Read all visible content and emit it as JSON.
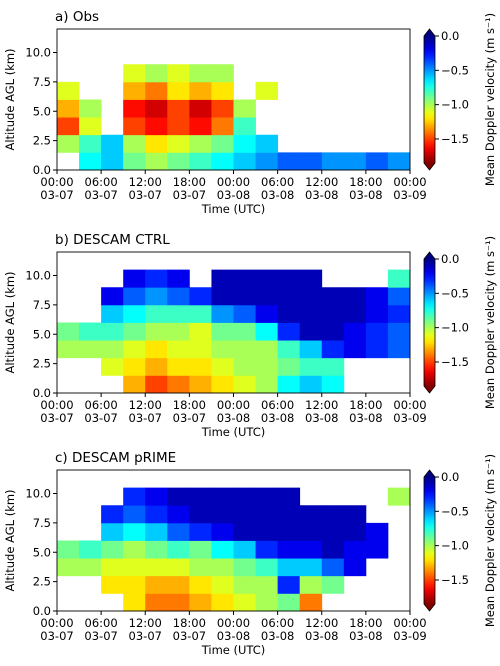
{
  "chart_data": [
    {
      "type": "heatmap",
      "title": "a) Obs",
      "xlabel": "Time (UTC)",
      "ylabel": "Altitude AGL (km)",
      "colorbar_label": "Mean Doppler velocity (m s⁻¹)",
      "cmap": "jet_r",
      "clim": [
        -1.85,
        0
      ],
      "cticks": [
        {
          "value": 0,
          "label": "0.0"
        },
        {
          "value": -0.5,
          "label": "−0.5"
        },
        {
          "value": -1,
          "label": "−1.0"
        },
        {
          "value": -1.5,
          "label": "−1.5"
        }
      ],
      "xlim": [
        "03-07 00:00",
        "03-09 00:00"
      ],
      "xticks": [
        {
          "value": "03-07 00:00",
          "label": [
            "00:00",
            "03-07"
          ]
        },
        {
          "value": "03-07 06:00",
          "label": [
            "06:00",
            "03-07"
          ]
        },
        {
          "value": "03-07 12:00",
          "label": [
            "12:00",
            "03-07"
          ]
        },
        {
          "value": "03-07 18:00",
          "label": [
            "18:00",
            "03-07"
          ]
        },
        {
          "value": "03-08 00:00",
          "label": [
            "00:00",
            "03-08"
          ]
        },
        {
          "value": "03-08 06:00",
          "label": [
            "06:00",
            "03-08"
          ]
        },
        {
          "value": "03-08 12:00",
          "label": [
            "12:00",
            "03-08"
          ]
        },
        {
          "value": "03-08 18:00",
          "label": [
            "18:00",
            "03-08"
          ]
        },
        {
          "value": "03-09 00:00",
          "label": [
            "00:00",
            "03-09"
          ]
        }
      ],
      "ylim": [
        0,
        12
      ],
      "yticks": [
        {
          "value": 0,
          "label": "0.0"
        },
        {
          "value": 2.5,
          "label": "2.5"
        },
        {
          "value": 5,
          "label": "5.0"
        },
        {
          "value": 7.5,
          "label": "7.5"
        },
        {
          "value": 10,
          "label": "10.0"
        }
      ],
      "x": [
        "03-07 00:00",
        "03-07 03:00",
        "03-07 06:00",
        "03-07 09:00",
        "03-07 12:00",
        "03-07 15:00",
        "03-07 18:00",
        "03-07 21:00",
        "03-08 00:00",
        "03-08 03:00",
        "03-08 06:00",
        "03-08 09:00",
        "03-08 12:00",
        "03-08 15:00",
        "03-08 18:00",
        "03-08 21:00",
        "03-09 00:00"
      ],
      "y": [
        0,
        1.5,
        3,
        4.5,
        6,
        7.5,
        9,
        10.5,
        12
      ],
      "values": [
        [
          null,
          -0.7,
          -0.6,
          -0.9,
          -1.0,
          -0.9,
          -0.8,
          -0.7,
          -0.6,
          -0.5,
          -0.4,
          -0.4,
          -0.5,
          -0.5,
          -0.4,
          -0.5
        ],
        [
          -1.0,
          -0.8,
          -0.6,
          -1.0,
          -1.2,
          -1.1,
          -1.0,
          -0.9,
          -0.7,
          -0.6,
          null,
          null,
          null,
          null,
          null,
          null
        ],
        [
          -1.5,
          -1.1,
          null,
          -1.5,
          -1.6,
          -1.5,
          -1.6,
          -1.4,
          -0.8,
          null,
          null,
          null,
          null,
          null,
          null,
          null
        ],
        [
          -1.3,
          -1.0,
          null,
          -1.6,
          -1.7,
          -1.5,
          -1.7,
          -1.5,
          -1.0,
          null,
          null,
          null,
          null,
          null,
          null,
          null
        ],
        [
          -1.1,
          null,
          null,
          -1.3,
          -1.4,
          -1.2,
          -1.3,
          -1.2,
          null,
          -1.1,
          null,
          null,
          null,
          null,
          null,
          null
        ],
        [
          null,
          null,
          null,
          -1.1,
          -1.0,
          -1.1,
          -1.0,
          -1.0,
          null,
          null,
          null,
          null,
          null,
          null,
          null,
          null
        ],
        [
          null,
          null,
          null,
          null,
          null,
          null,
          null,
          null,
          null,
          null,
          null,
          null,
          null,
          null,
          null,
          null
        ],
        [
          null,
          null,
          null,
          null,
          null,
          null,
          null,
          null,
          null,
          null,
          null,
          null,
          null,
          null,
          null,
          null
        ]
      ]
    },
    {
      "type": "heatmap",
      "title": "b) DESCAM CTRL",
      "xlabel": "Time (UTC)",
      "ylabel": "Altitude AGL (km)",
      "colorbar_label": "Mean Doppler velocity (m s⁻¹)",
      "cmap": "jet_r",
      "clim": [
        -1.85,
        0
      ],
      "cticks": [
        {
          "value": 0,
          "label": "0.0"
        },
        {
          "value": -0.5,
          "label": "−0.5"
        },
        {
          "value": -1,
          "label": "−1.0"
        },
        {
          "value": -1.5,
          "label": "−1.5"
        }
      ],
      "xlim": [
        "03-07 00:00",
        "03-09 00:00"
      ],
      "xticks": [
        {
          "value": "03-07 00:00",
          "label": [
            "00:00",
            "03-07"
          ]
        },
        {
          "value": "03-07 06:00",
          "label": [
            "06:00",
            "03-07"
          ]
        },
        {
          "value": "03-07 12:00",
          "label": [
            "12:00",
            "03-07"
          ]
        },
        {
          "value": "03-07 18:00",
          "label": [
            "18:00",
            "03-07"
          ]
        },
        {
          "value": "03-08 00:00",
          "label": [
            "00:00",
            "03-08"
          ]
        },
        {
          "value": "03-08 06:00",
          "label": [
            "06:00",
            "03-08"
          ]
        },
        {
          "value": "03-08 12:00",
          "label": [
            "12:00",
            "03-08"
          ]
        },
        {
          "value": "03-08 18:00",
          "label": [
            "18:00",
            "03-08"
          ]
        },
        {
          "value": "03-09 00:00",
          "label": [
            "00:00",
            "03-09"
          ]
        }
      ],
      "ylim": [
        0,
        12
      ],
      "yticks": [
        {
          "value": 0,
          "label": "0.0"
        },
        {
          "value": 2.5,
          "label": "2.5"
        },
        {
          "value": 5,
          "label": "5.0"
        },
        {
          "value": 7.5,
          "label": "7.5"
        },
        {
          "value": 10,
          "label": "10.0"
        }
      ],
      "x": [
        "03-07 00:00",
        "03-07 03:00",
        "03-07 06:00",
        "03-07 09:00",
        "03-07 12:00",
        "03-07 15:00",
        "03-07 18:00",
        "03-07 21:00",
        "03-08 00:00",
        "03-08 03:00",
        "03-08 06:00",
        "03-08 09:00",
        "03-08 12:00",
        "03-08 15:00",
        "03-08 18:00",
        "03-08 21:00",
        "03-09 00:00"
      ],
      "y": [
        0,
        1.5,
        3,
        4.5,
        6,
        7.5,
        9,
        10.5,
        12
      ],
      "values": [
        [
          null,
          null,
          null,
          -1.3,
          -1.5,
          -1.4,
          -1.3,
          -1.2,
          -1.1,
          -1.0,
          -0.7,
          -0.6,
          -0.7,
          null,
          null,
          null
        ],
        [
          null,
          null,
          -1.1,
          -1.2,
          -1.3,
          -1.2,
          -1.2,
          -1.1,
          -1.0,
          -1.0,
          -0.9,
          -0.8,
          -0.8,
          null,
          null,
          null
        ],
        [
          -1.0,
          -1.0,
          -1.0,
          -1.1,
          -1.2,
          -1.1,
          -1.1,
          -1.0,
          -1.0,
          -1.0,
          -0.8,
          -0.6,
          -0.3,
          -0.2,
          -0.3,
          -0.4
        ],
        [
          -0.9,
          -0.8,
          -0.8,
          -0.9,
          -1.0,
          -1.0,
          -1.1,
          -0.9,
          -0.9,
          -0.7,
          -0.3,
          -0.1,
          -0.1,
          -0.2,
          -0.3,
          -0.4
        ],
        [
          null,
          null,
          -0.6,
          -0.7,
          -0.8,
          -0.8,
          -0.8,
          -0.5,
          -0.4,
          -0.2,
          -0.1,
          -0.1,
          -0.1,
          -0.1,
          -0.2,
          -0.3
        ],
        [
          null,
          null,
          -0.2,
          -0.4,
          -0.5,
          -0.4,
          -0.3,
          -0.1,
          -0.1,
          -0.1,
          -0.1,
          -0.1,
          -0.1,
          -0.1,
          -0.2,
          -0.4
        ],
        [
          null,
          null,
          null,
          -0.2,
          -0.3,
          -0.2,
          null,
          -0.1,
          -0.1,
          -0.1,
          -0.1,
          -0.1,
          null,
          null,
          null,
          -0.8
        ],
        [
          null,
          null,
          null,
          null,
          null,
          null,
          null,
          null,
          null,
          null,
          null,
          null,
          null,
          null,
          null,
          null
        ]
      ]
    },
    {
      "type": "heatmap",
      "title": "c) DESCAM pRIME",
      "xlabel": "Time (UTC)",
      "ylabel": "Altitude AGL (km)",
      "colorbar_label": "Mean Doppler velocity (m s⁻¹)",
      "cmap": "jet_r",
      "clim": [
        -1.85,
        0
      ],
      "cticks": [
        {
          "value": 0,
          "label": "0.0"
        },
        {
          "value": -0.5,
          "label": "−0.5"
        },
        {
          "value": -1,
          "label": "−1.0"
        },
        {
          "value": -1.5,
          "label": "−1.5"
        }
      ],
      "xlim": [
        "03-07 00:00",
        "03-09 00:00"
      ],
      "xticks": [
        {
          "value": "03-07 00:00",
          "label": [
            "00:00",
            "03-07"
          ]
        },
        {
          "value": "03-07 06:00",
          "label": [
            "06:00",
            "03-07"
          ]
        },
        {
          "value": "03-07 12:00",
          "label": [
            "12:00",
            "03-07"
          ]
        },
        {
          "value": "03-07 18:00",
          "label": [
            "18:00",
            "03-07"
          ]
        },
        {
          "value": "03-08 00:00",
          "label": [
            "00:00",
            "03-08"
          ]
        },
        {
          "value": "03-08 06:00",
          "label": [
            "06:00",
            "03-08"
          ]
        },
        {
          "value": "03-08 12:00",
          "label": [
            "12:00",
            "03-08"
          ]
        },
        {
          "value": "03-08 18:00",
          "label": [
            "18:00",
            "03-08"
          ]
        },
        {
          "value": "03-09 00:00",
          "label": [
            "00:00",
            "03-09"
          ]
        }
      ],
      "ylim": [
        0,
        12
      ],
      "yticks": [
        {
          "value": 0,
          "label": "0.0"
        },
        {
          "value": 2.5,
          "label": "2.5"
        },
        {
          "value": 5,
          "label": "5.0"
        },
        {
          "value": 7.5,
          "label": "7.5"
        },
        {
          "value": 10,
          "label": "10.0"
        }
      ],
      "x": [
        "03-07 00:00",
        "03-07 03:00",
        "03-07 06:00",
        "03-07 09:00",
        "03-07 12:00",
        "03-07 15:00",
        "03-07 18:00",
        "03-07 21:00",
        "03-08 00:00",
        "03-08 03:00",
        "03-08 06:00",
        "03-08 09:00",
        "03-08 12:00",
        "03-08 15:00",
        "03-08 18:00",
        "03-08 21:00",
        "03-09 00:00"
      ],
      "y": [
        0,
        1.5,
        3,
        4.5,
        6,
        7.5,
        9,
        10.5,
        12
      ],
      "values": [
        [
          null,
          null,
          null,
          -1.2,
          -1.4,
          -1.4,
          -1.3,
          -1.2,
          -1.1,
          -1.0,
          -0.9,
          -1.4,
          null,
          null,
          null,
          null
        ],
        [
          null,
          null,
          -1.2,
          -1.2,
          -1.3,
          -1.3,
          -1.2,
          -1.1,
          -1.0,
          -1.0,
          -0.3,
          -1.0,
          -0.9,
          null,
          null,
          null
        ],
        [
          -1.0,
          -1.0,
          -1.1,
          -1.1,
          -1.1,
          -1.1,
          -1.0,
          -1.0,
          -0.9,
          -0.8,
          -0.6,
          -0.6,
          -0.4,
          -0.2,
          null,
          null
        ],
        [
          -0.9,
          -0.8,
          -0.9,
          -1.0,
          -0.9,
          -0.8,
          -0.9,
          -0.7,
          -0.6,
          -0.3,
          -0.2,
          -0.2,
          -0.1,
          -0.2,
          -0.2,
          null
        ],
        [
          null,
          null,
          -0.6,
          -0.7,
          -0.6,
          -0.4,
          -0.3,
          -0.2,
          -0.1,
          -0.1,
          -0.1,
          -0.1,
          -0.1,
          -0.1,
          -0.2,
          null
        ],
        [
          null,
          null,
          -0.3,
          -0.4,
          -0.3,
          -0.2,
          -0.1,
          -0.1,
          -0.1,
          -0.1,
          -0.1,
          -0.1,
          -0.1,
          -0.1,
          null,
          null
        ],
        [
          null,
          null,
          null,
          -0.3,
          -0.2,
          -0.1,
          -0.1,
          -0.1,
          -0.1,
          -0.1,
          -0.1,
          null,
          null,
          null,
          null,
          -1.0
        ],
        [
          null,
          null,
          null,
          null,
          null,
          null,
          null,
          null,
          null,
          null,
          null,
          null,
          null,
          null,
          null,
          null
        ]
      ]
    }
  ]
}
